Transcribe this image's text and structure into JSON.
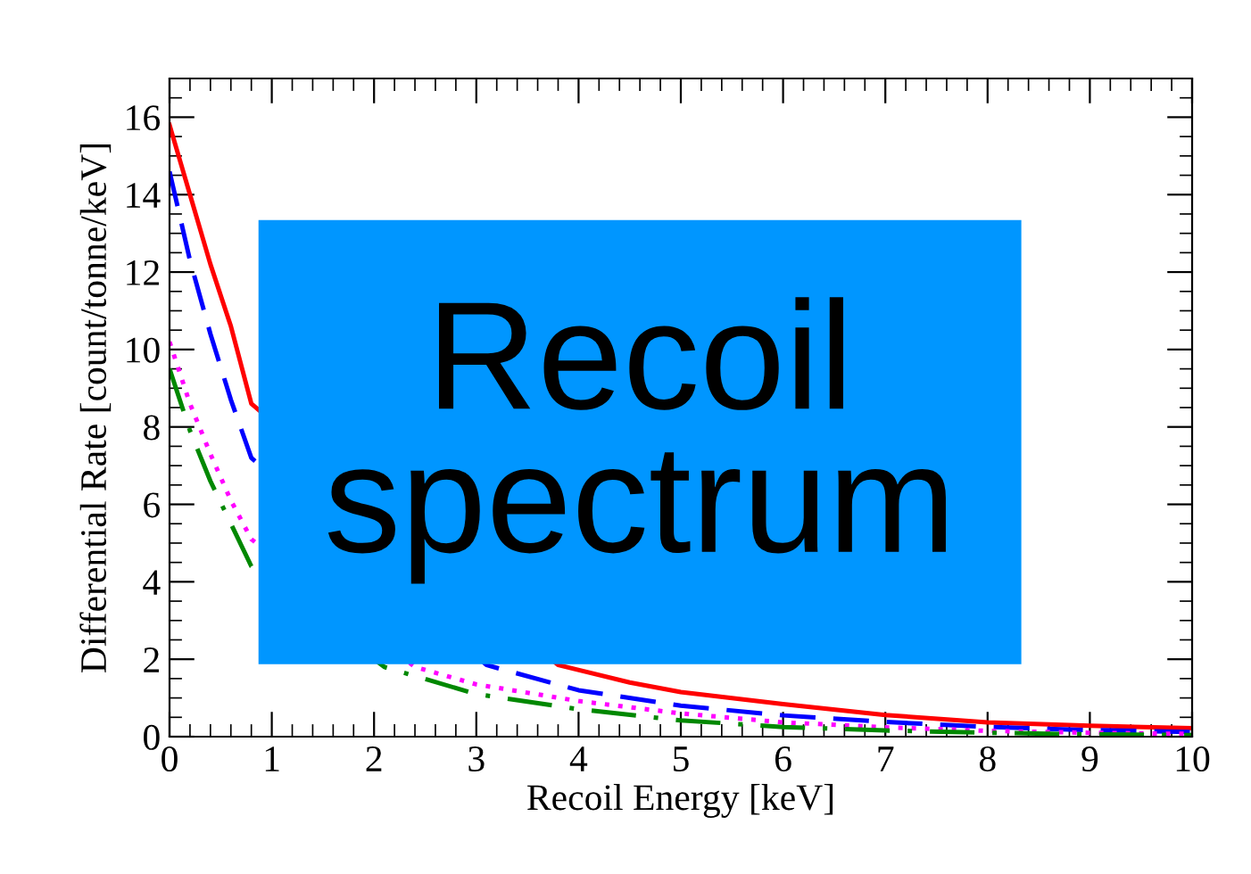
{
  "chart_data": {
    "type": "line",
    "xlabel": "Recoil Energy [keV]",
    "ylabel": "Differential Rate [count/tonne/keV]",
    "xlim": [
      0,
      10
    ],
    "ylim": [
      0,
      17
    ],
    "xticks": [
      0,
      1,
      2,
      3,
      4,
      5,
      6,
      7,
      8,
      9,
      10
    ],
    "yticks": [
      0,
      2,
      4,
      6,
      8,
      10,
      12,
      14,
      16
    ],
    "grid": false,
    "annotations": [
      "Recoil spectrum"
    ],
    "series": [
      {
        "color": "#ff0000",
        "line_style": "solid",
        "x": [
          0,
          0.2,
          0.4,
          0.6,
          0.8,
          3.8,
          4.5,
          5,
          6,
          7,
          8,
          9,
          10
        ],
        "values": [
          15.8,
          14.0,
          12.2,
          10.6,
          8.6,
          1.85,
          1.4,
          1.15,
          0.84,
          0.56,
          0.37,
          0.28,
          0.22
        ]
      },
      {
        "color": "#0000ff",
        "line_style": "dashed",
        "x": [
          0,
          0.2,
          0.4,
          0.6,
          0.8,
          3.1,
          4,
          5,
          6,
          7,
          8,
          9,
          10
        ],
        "values": [
          14.6,
          12.3,
          10.4,
          8.7,
          7.2,
          1.85,
          1.2,
          0.8,
          0.55,
          0.38,
          0.25,
          0.17,
          0.12
        ]
      },
      {
        "color": "#ff00ff",
        "line_style": "dotted",
        "x": [
          0,
          0.2,
          0.4,
          0.6,
          0.8,
          2.4,
          3,
          4,
          5,
          6,
          7,
          8,
          9,
          10
        ],
        "values": [
          10.2,
          8.6,
          7.3,
          6.1,
          5.1,
          1.8,
          1.35,
          0.92,
          0.6,
          0.37,
          0.24,
          0.15,
          0.1,
          0.07
        ]
      },
      {
        "color": "#008800",
        "line_style": "dashdot",
        "x": [
          0,
          0.2,
          0.4,
          0.6,
          0.8,
          2.1,
          3,
          4,
          5,
          6,
          7,
          8,
          9,
          10
        ],
        "values": [
          9.5,
          7.9,
          6.6,
          5.5,
          4.4,
          1.8,
          1.1,
          0.71,
          0.42,
          0.25,
          0.16,
          0.1,
          0.06,
          0.04
        ]
      }
    ]
  }
}
